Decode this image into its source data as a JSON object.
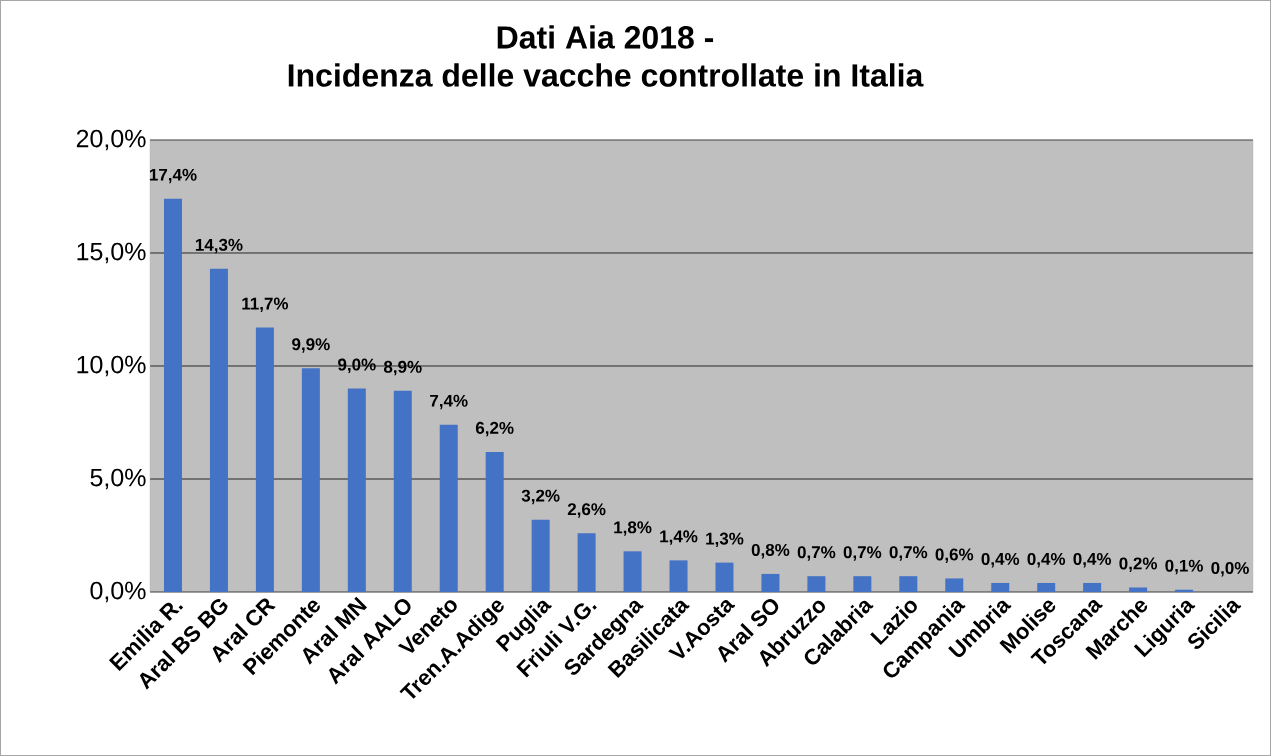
{
  "chart_data": {
    "type": "bar",
    "title": "Dati Aia 2018 -\nIncidenza delle vacche controllate in Italia",
    "categories": [
      "Emilia R.",
      "Aral BS BG",
      "Aral CR",
      "Piemonte",
      "Aral MN",
      "Aral AALO",
      "Veneto",
      "Tren.A.Adige",
      "Puglia",
      "Friuli V.G.",
      "Sardegna",
      "Basilicata",
      "V.Aosta",
      "Aral SO",
      "Abruzzo",
      "Calabria",
      "Lazio",
      "Campania",
      "Umbria",
      "Molise",
      "Toscana",
      "Marche",
      "Liguria",
      "Sicilia"
    ],
    "values": [
      17.4,
      14.3,
      11.7,
      9.9,
      9.0,
      8.9,
      7.4,
      6.2,
      3.2,
      2.6,
      1.8,
      1.4,
      1.3,
      0.8,
      0.7,
      0.7,
      0.7,
      0.6,
      0.4,
      0.4,
      0.4,
      0.2,
      0.1,
      0.0
    ],
    "value_labels": [
      "17,4%",
      "14,3%",
      "11,7%",
      "9,9%",
      "9,0%",
      "8,9%",
      "7,4%",
      "6,2%",
      "3,2%",
      "2,6%",
      "1,8%",
      "1,4%",
      "1,3%",
      "0,8%",
      "0,7%",
      "0,7%",
      "0,7%",
      "0,6%",
      "0,4%",
      "0,4%",
      "0,4%",
      "0,2%",
      "0,1%",
      "0,0%"
    ],
    "color": "#4472c4",
    "ylim": [
      0,
      20
    ],
    "yticks": [
      {
        "value": 0,
        "label": "0,0%"
      },
      {
        "value": 5,
        "label": "5,0%"
      },
      {
        "value": 10,
        "label": "10,0%"
      },
      {
        "value": 15,
        "label": "15,0%"
      },
      {
        "value": 20,
        "label": "20,0%"
      }
    ],
    "grid": "y"
  }
}
